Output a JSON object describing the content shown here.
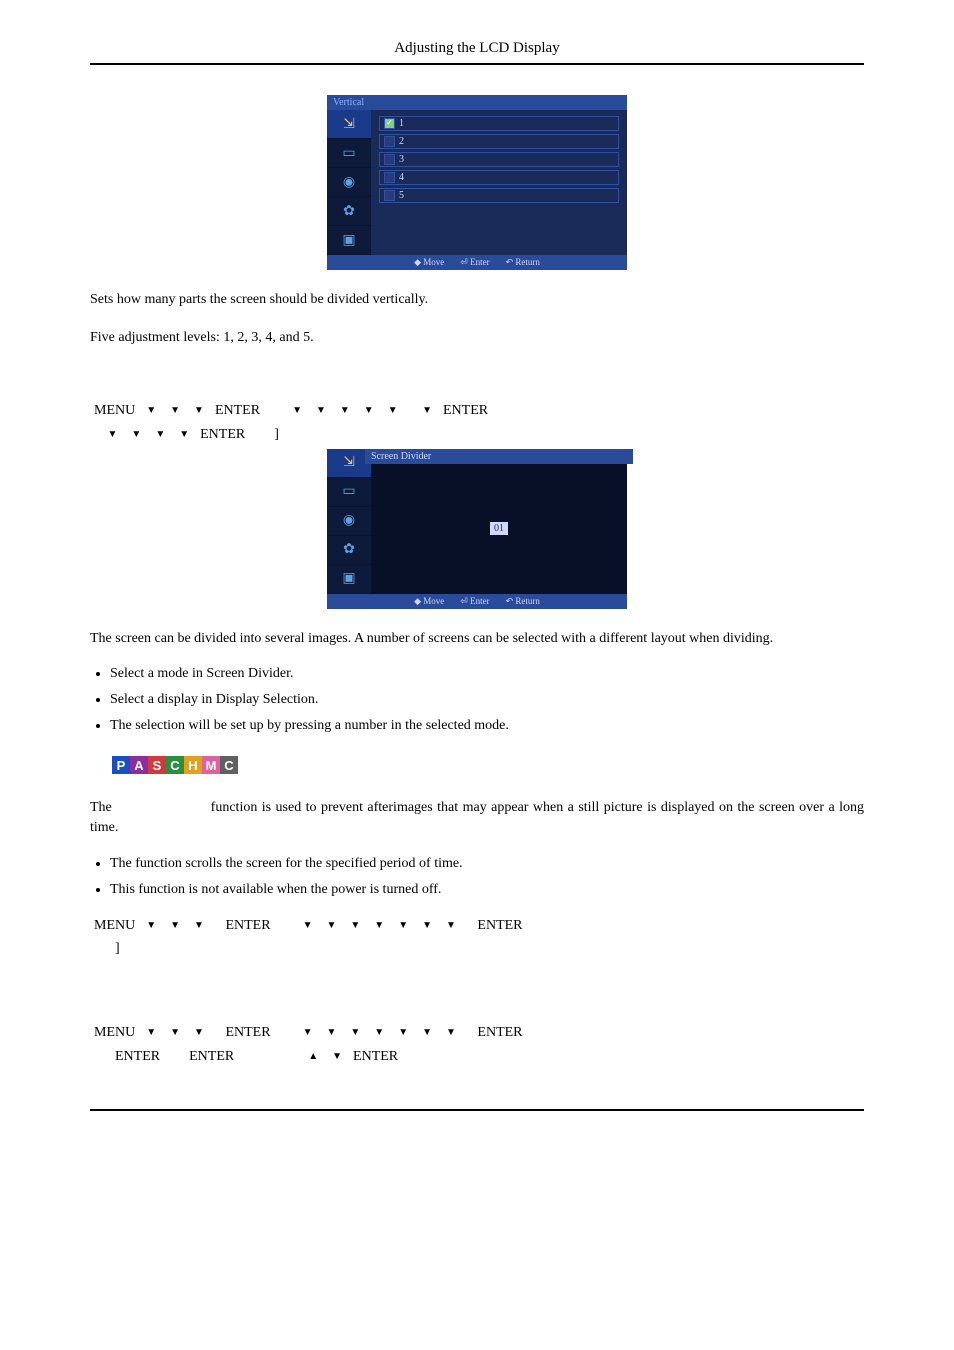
{
  "header": {
    "title": "Adjusting the LCD Display"
  },
  "osd1": {
    "title": "Vertical",
    "items": [
      "1",
      "2",
      "3",
      "4",
      "5"
    ],
    "selected_index": 0,
    "footer": [
      "◆ Move",
      "⏎ Enter",
      "↶ Return"
    ],
    "side_icons": [
      "⇲",
      "▭",
      "◉",
      "✿",
      "▣"
    ],
    "colors": {
      "titlebar": "#2a4a9a",
      "panel": "#1a2b5a",
      "side": "#0e1a3a",
      "row_border": "#3050a0",
      "row_text": "#cfd8ff",
      "check_on": "#7fd07f",
      "icon": "#5fa0e0",
      "icon_sel_bg": "#1a3a8a",
      "icon_sel": "#f5c060"
    }
  },
  "p1": "Sets how many parts the screen should be divided vertically.",
  "p2": "Five adjustment levels: 1, 2, 3, 4, and 5.",
  "nav1": {
    "tokens_line1": [
      "MENU",
      "▼",
      "▼",
      "▼",
      "ENTER",
      "",
      "",
      "▼",
      "▼",
      "▼",
      "▼",
      "▼",
      "",
      "▼",
      "ENTER"
    ],
    "tokens_line2": [
      "",
      "▼",
      "▼",
      "▼",
      "▼",
      "ENTER",
      "",
      "",
      "]"
    ]
  },
  "osd2": {
    "title": "Screen Divider",
    "badge": "01",
    "footer": [
      "◆ Move",
      "⏎ Enter",
      "↶ Return"
    ],
    "side_icons": [
      "⇲",
      "▭",
      "◉",
      "✿",
      "▣"
    ]
  },
  "p3": "The screen can be divided into several images. A number of screens can be selected with a different layout when dividing.",
  "bullets1": [
    "Select a mode in Screen Divider.",
    "Select a display in Display Selection.",
    "The selection will be set up by pressing a number in the selected mode."
  ],
  "badge_letters": [
    "P",
    "A",
    "S",
    "C",
    "H",
    "M",
    "C"
  ],
  "p4a": "The ",
  "p4b": " function is used to prevent afterimages that may appear when a still picture is displayed on the screen over a long time.",
  "bullets2": [
    "The                      function scrolls the screen for the specified period of time.",
    "This function is not available when the power is turned off."
  ],
  "nav2": {
    "tokens_line1": [
      "MENU",
      "▼",
      "▼",
      "▼",
      "",
      "ENTER",
      "",
      "",
      "▼",
      "▼",
      "▼",
      "▼",
      "▼",
      "▼",
      "▼",
      "",
      "ENTER"
    ],
    "tokens_line2": [
      "",
      "",
      "]"
    ]
  },
  "nav3": {
    "tokens_line1": [
      "MENU",
      "▼",
      "▼",
      "▼",
      "",
      "ENTER",
      "",
      "",
      "▼",
      "▼",
      "▼",
      "▼",
      "▼",
      "▼",
      "▼",
      "",
      "ENTER"
    ],
    "tokens_line2": [
      "",
      "",
      "ENTER",
      "",
      "",
      "ENTER",
      "",
      "",
      "",
      "",
      "",
      "",
      "▲",
      "▼",
      "ENTER"
    ]
  }
}
